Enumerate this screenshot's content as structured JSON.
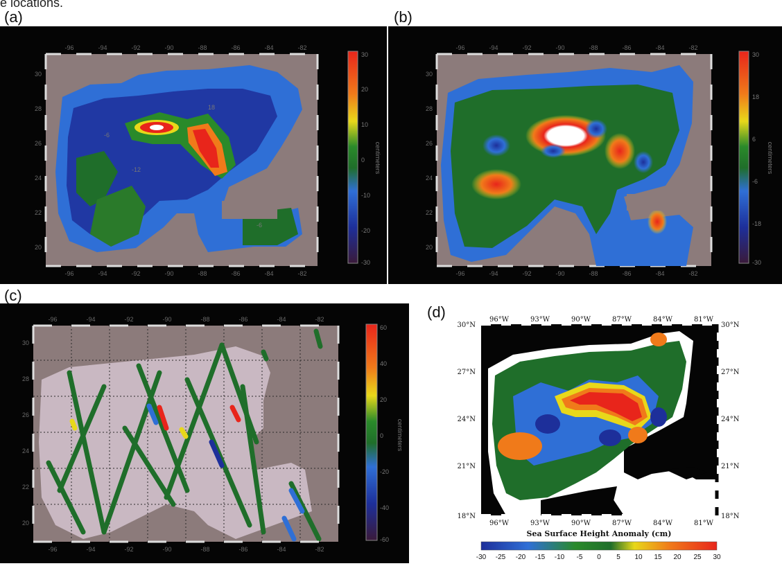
{
  "caption_fragment": "e locations.",
  "panels": {
    "a": {
      "label": "(a)",
      "lon_ticks": [
        "-96",
        "-94",
        "-92",
        "-90",
        "-88",
        "-86",
        "-84",
        "-82"
      ],
      "lat_ticks": [
        "30",
        "28",
        "26",
        "24",
        "22",
        "20"
      ],
      "colorbar": {
        "min": -30,
        "max": 30,
        "ticks": [
          "30",
          "20",
          "10",
          "0",
          "-10",
          "-20",
          "-30"
        ],
        "unit": "centimeters"
      },
      "contour_labels": [
        "-6",
        "-12",
        "18",
        "-6"
      ]
    },
    "b": {
      "label": "(b)",
      "lon_ticks": [
        "-96",
        "-94",
        "-92",
        "-90",
        "-88",
        "-86",
        "-84",
        "-82"
      ],
      "lat_ticks": [
        "30",
        "28",
        "26",
        "24",
        "22",
        "20"
      ],
      "colorbar": {
        "min": -30,
        "max": 30,
        "ticks": [
          "30",
          "18",
          "6",
          "-6",
          "-18",
          "-30"
        ],
        "unit": "centimeters"
      }
    },
    "c": {
      "label": "(c)",
      "lon_ticks": [
        "-96",
        "-94",
        "-92",
        "-90",
        "-88",
        "-86",
        "-84",
        "-82"
      ],
      "lat_ticks": [
        "30",
        "28",
        "26",
        "24",
        "22",
        "20"
      ],
      "colorbar": {
        "min": -60,
        "max": 60,
        "ticks": [
          "60",
          "40",
          "20",
          "0",
          "-20",
          "-40",
          "-60"
        ],
        "unit": "centimeters"
      }
    },
    "d": {
      "label": "(d)",
      "lon_ticks": [
        "96°W",
        "93°W",
        "90°W",
        "87°W",
        "84°W",
        "81°W"
      ],
      "lat_ticks": [
        "30°N",
        "27°N",
        "24°N",
        "21°N",
        "18°N"
      ],
      "colorbar": {
        "title": "Sea Surface Height Anomaly (cm)",
        "ticks": [
          "-30",
          "-25",
          "-20",
          "-15",
          "-10",
          "-5",
          "0",
          "5",
          "10",
          "15",
          "20",
          "25",
          "30"
        ]
      }
    }
  },
  "colors": {
    "land": "#8c7b7b",
    "land_light": "#c9b8c2",
    "ocean_green": "#1f6e2a",
    "blue": "#2f6fd6",
    "dark_blue": "#1d2f9a",
    "orange": "#f07a1a",
    "red": "#e8251b",
    "yellow": "#e8d81a"
  }
}
